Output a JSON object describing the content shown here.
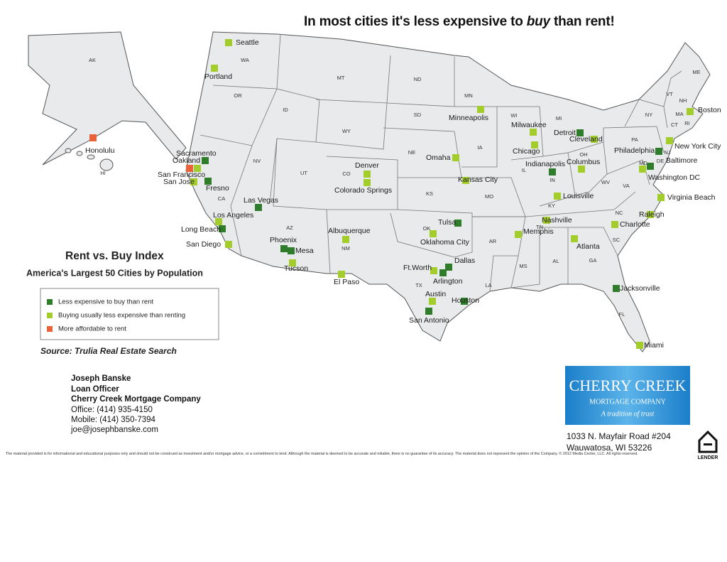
{
  "title": {
    "before": "In most cities it's less expensive to ",
    "emphasis": "buy",
    "after": " than rent!"
  },
  "legend": {
    "heading": "Rent vs. Buy Index",
    "subheading": "America's Largest 50 Cities by Population",
    "items": [
      {
        "label": "Less expensive to buy than rent",
        "color": "#2f7d2a"
      },
      {
        "label": "Buying usually less expensive than renting",
        "color": "#a3cd2b"
      },
      {
        "label": "More affordable to rent",
        "color": "#e9623a"
      }
    ],
    "source": "Source: Trulia Real Estate Search"
  },
  "states": [
    "AK",
    "WA",
    "OR",
    "ID",
    "MT",
    "ND",
    "SD",
    "WY",
    "NE",
    "NV",
    "UT",
    "CO",
    "KS",
    "CA",
    "AZ",
    "NM",
    "OK",
    "TX",
    "MN",
    "IA",
    "MO",
    "AR",
    "LA",
    "WI",
    "IL",
    "MI",
    "IN",
    "OH",
    "KY",
    "TN",
    "MS",
    "AL",
    "GA",
    "FL",
    "SC",
    "NC",
    "VA",
    "WV",
    "PA",
    "NY",
    "VT",
    "NH",
    "ME",
    "MA",
    "CT",
    "RI",
    "NJ",
    "DE",
    "MD",
    "HI"
  ],
  "cities": [
    {
      "name": "Seattle",
      "category": 1
    },
    {
      "name": "Portland",
      "category": 1
    },
    {
      "name": "Sacramento",
      "category": 0
    },
    {
      "name": "Oakland",
      "category": 1
    },
    {
      "name": "San Francisco",
      "category": 2
    },
    {
      "name": "San Jose",
      "category": 1
    },
    {
      "name": "Fresno",
      "category": 0
    },
    {
      "name": "Honolulu",
      "category": 2
    },
    {
      "name": "Las Vegas",
      "category": 0
    },
    {
      "name": "Los Angeles",
      "category": 1
    },
    {
      "name": "Long Beach",
      "category": 0
    },
    {
      "name": "San Diego",
      "category": 1
    },
    {
      "name": "Phoenix",
      "category": 0
    },
    {
      "name": "Mesa",
      "category": 0
    },
    {
      "name": "Tucson",
      "category": 1
    },
    {
      "name": "Albuquerque",
      "category": 1
    },
    {
      "name": "El Paso",
      "category": 1
    },
    {
      "name": "Denver",
      "category": 1
    },
    {
      "name": "Colorado Springs",
      "category": 1
    },
    {
      "name": "Omaha",
      "category": 1
    },
    {
      "name": "Kansas City",
      "category": 1
    },
    {
      "name": "Tulsa",
      "category": 0
    },
    {
      "name": "Oklahoma City",
      "category": 1
    },
    {
      "name": "Ft.Worth",
      "category": 1
    },
    {
      "name": "Dallas",
      "category": 0
    },
    {
      "name": "Arlington",
      "category": 0
    },
    {
      "name": "Austin",
      "category": 1
    },
    {
      "name": "San Antonio",
      "category": 0
    },
    {
      "name": "Houston",
      "category": 0
    },
    {
      "name": "Minneapolis",
      "category": 1
    },
    {
      "name": "Milwaukee",
      "category": 1
    },
    {
      "name": "Chicago",
      "category": 1
    },
    {
      "name": "Detroit",
      "category": 0
    },
    {
      "name": "Indianapolis",
      "category": 0
    },
    {
      "name": "Cleveland",
      "category": 1
    },
    {
      "name": "Columbus",
      "category": 1
    },
    {
      "name": "Louisville",
      "category": 1
    },
    {
      "name": "Nashville",
      "category": 1
    },
    {
      "name": "Memphis",
      "category": 1
    },
    {
      "name": "Atlanta",
      "category": 1
    },
    {
      "name": "Jacksonville",
      "category": 0
    },
    {
      "name": "Miami",
      "category": 1
    },
    {
      "name": "Charlotte",
      "category": 1
    },
    {
      "name": "Raleigh",
      "category": 1
    },
    {
      "name": "Virginia Beach",
      "category": 1
    },
    {
      "name": "Washington DC",
      "category": 1
    },
    {
      "name": "Baltimore",
      "category": 0
    },
    {
      "name": "Philadelphia",
      "category": 0
    },
    {
      "name": "New York City",
      "category": 1
    },
    {
      "name": "Boston",
      "category": 1
    }
  ],
  "contact": {
    "name": "Joseph Banske",
    "role": "Loan Officer",
    "company": "Cherry Creek Mortgage Company",
    "office": "Office: (414) 935-4150",
    "mobile": "Mobile: (414) 350-7394",
    "email": "joe@josephbanske.com"
  },
  "logo": {
    "name": "CHERRY CREEK",
    "sub": "MORTGAGE COMPANY",
    "tagline": "A tradition of trust"
  },
  "address": [
    "1033 N. Mayfair Road #204",
    "Wauwatosa, WI 53226"
  ],
  "badge": "LENDER",
  "disclaimer": "The material provided is for informational and educational purposes only and should not be construed as investment and/or mortgage advice, or a commitment to lend. Although the material is deemed to be accurate and reliable, there is no guarantee of its accuracy. The material does not represent the opinion of the Company. © 2012 Media Center, LLC. All rights reserved."
}
